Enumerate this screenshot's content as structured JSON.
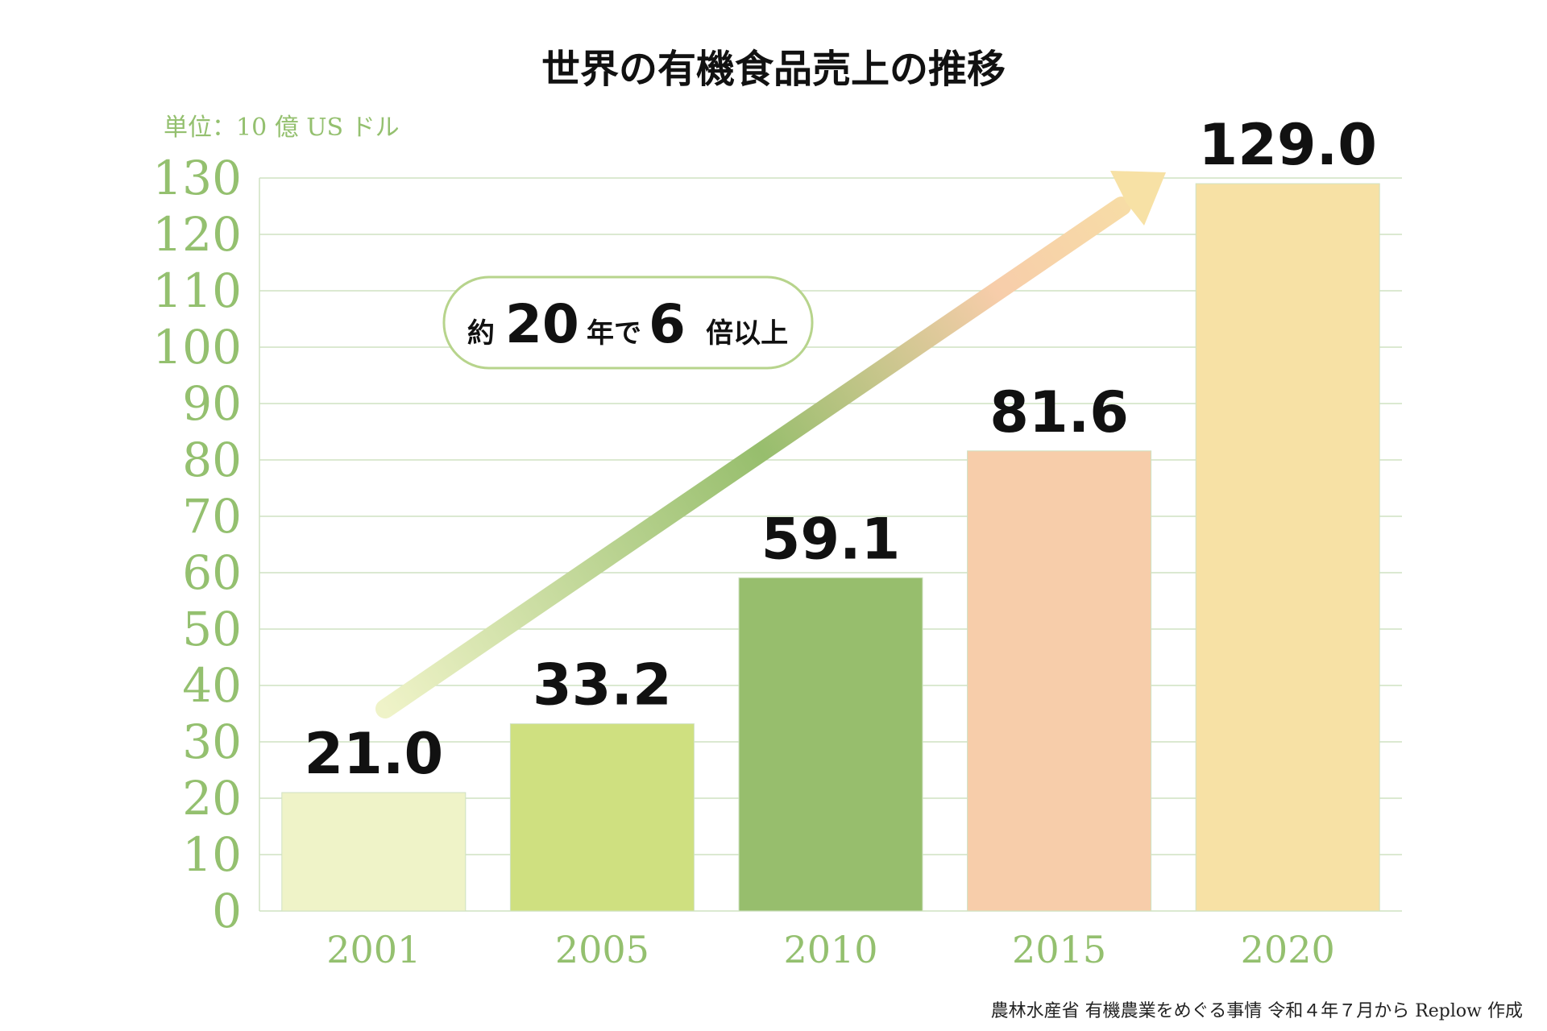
{
  "colors": {
    "axis_text": "#94c06f",
    "grid": "#cfe2c2",
    "bars": [
      "#eff3c8",
      "#cfe080",
      "#97be6d",
      "#f7cdaa",
      "#f7e1a5"
    ],
    "arrow_start": "#eff3c8",
    "arrow_mid": "#97be6d",
    "arrow_high": "#f7cdaa",
    "arrow_end": "#f7e1a5",
    "callout_border": "#b7d48c"
  },
  "chart_data": {
    "type": "bar",
    "title": "世界の有機食品売上の推移",
    "unit_label": "単位：10 億 US ドル",
    "categories": [
      "2001",
      "2005",
      "2010",
      "2015",
      "2020"
    ],
    "values": [
      21.0,
      33.2,
      59.1,
      81.6,
      129.0
    ],
    "value_labels": [
      "21.0",
      "33.2",
      "59.1",
      "81.6",
      "129.0"
    ],
    "yticks": [
      0,
      10,
      20,
      30,
      40,
      50,
      60,
      70,
      80,
      90,
      100,
      110,
      120,
      130
    ],
    "ylim": [
      0,
      130
    ],
    "xlabel": "",
    "ylabel": "",
    "grid": true,
    "annotation": {
      "prefix": "約",
      "years": "20",
      "middle": "年で",
      "multiple": "6",
      "suffix": "倍以上"
    },
    "source": "農林水産省 有機農業をめぐる事情 令和４年７月から Replow 作成"
  }
}
